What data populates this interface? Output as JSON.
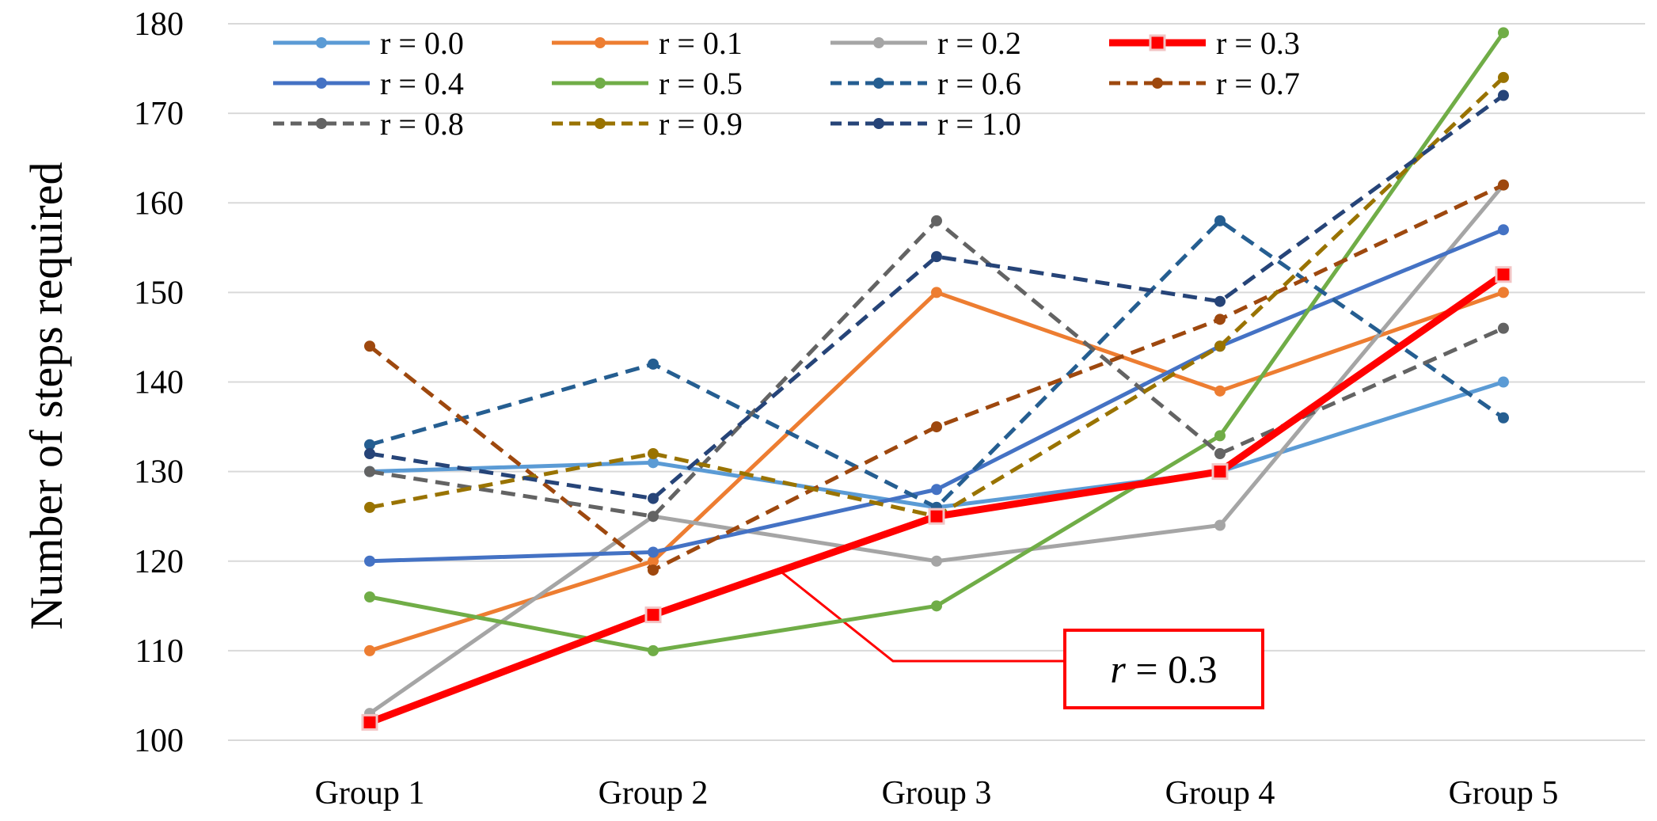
{
  "chart_data": {
    "type": "line",
    "title": "",
    "xlabel": "",
    "ylabel": "Number of steps required",
    "ylim": [
      100,
      180
    ],
    "yticks": [
      100,
      110,
      120,
      130,
      140,
      150,
      160,
      170,
      180
    ],
    "grid": true,
    "legend_position": "top",
    "categories": [
      "Group 1",
      "Group 2",
      "Group 3",
      "Group 4",
      "Group 5"
    ],
    "series": [
      {
        "name": "r = 0.0",
        "color": "#5b9bd5",
        "dash": "solid",
        "marker": "circle",
        "values": [
          130,
          131,
          126,
          130,
          140
        ]
      },
      {
        "name": "r = 0.1",
        "color": "#ed7d31",
        "dash": "solid",
        "marker": "circle",
        "values": [
          110,
          120,
          150,
          139,
          150
        ]
      },
      {
        "name": "r = 0.2",
        "color": "#a5a5a5",
        "dash": "solid",
        "marker": "circle",
        "values": [
          103,
          125,
          120,
          124,
          162
        ]
      },
      {
        "name": "r = 0.3",
        "color": "#ff0000",
        "dash": "solid",
        "marker": "square",
        "highlight": true,
        "values": [
          102,
          114,
          125,
          130,
          152
        ]
      },
      {
        "name": "r = 0.4",
        "color": "#4472c4",
        "dash": "solid",
        "marker": "circle",
        "values": [
          120,
          121,
          128,
          144,
          157
        ]
      },
      {
        "name": "r = 0.5",
        "color": "#70ad47",
        "dash": "solid",
        "marker": "circle",
        "values": [
          116,
          110,
          115,
          134,
          179
        ]
      },
      {
        "name": "r = 0.6",
        "color": "#255e91",
        "dash": "dashed",
        "marker": "circle",
        "values": [
          133,
          142,
          126,
          158,
          136
        ]
      },
      {
        "name": "r = 0.7",
        "color": "#9e480e",
        "dash": "dashed",
        "marker": "circle",
        "values": [
          144,
          119,
          135,
          147,
          162
        ]
      },
      {
        "name": "r = 0.8",
        "color": "#636363",
        "dash": "dashed",
        "marker": "circle",
        "values": [
          130,
          125,
          158,
          132,
          146
        ]
      },
      {
        "name": "r = 0.9",
        "color": "#997300",
        "dash": "dashed",
        "marker": "circle",
        "values": [
          126,
          132,
          125,
          144,
          174
        ]
      },
      {
        "name": "r = 1.0",
        "color": "#264478",
        "dash": "dashed",
        "marker": "circle",
        "values": [
          132,
          127,
          154,
          149,
          172
        ]
      }
    ],
    "annotation": {
      "text_italic": "r",
      "text_rest": " = 0.3",
      "color": "#ff0000",
      "points_to": {
        "series": "r = 0.3",
        "between": [
          "Group 2",
          "Group 3"
        ]
      }
    }
  }
}
